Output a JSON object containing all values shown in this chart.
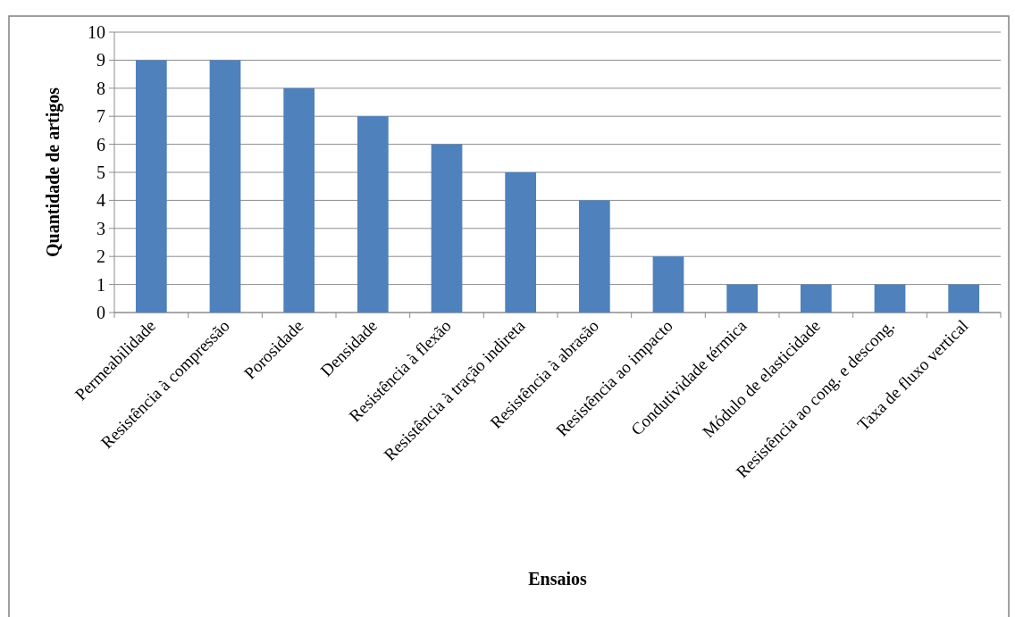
{
  "chart_data": {
    "type": "bar",
    "xlabel": "Ensaios",
    "ylabel": "Quantidade de artigos",
    "categories": [
      "Permeabilidade",
      "Resistência à compressão",
      "Porosidade",
      "Densidade",
      "Resistência à flexão",
      "Resistência à tração indireta",
      "Resistência à abrasão",
      "Resistência ao impacto",
      "Condutividade térmica",
      "Módulo de elasticidade",
      "Resistência ao cong. e descong.",
      "Taxa de fluxo vertical"
    ],
    "values": [
      9,
      9,
      8,
      7,
      6,
      5,
      4,
      2,
      1,
      1,
      1,
      1
    ],
    "color": "#4f81bd",
    "ylim": [
      0,
      10
    ],
    "yticks": [
      0,
      1,
      2,
      3,
      4,
      5,
      6,
      7,
      8,
      9,
      10
    ],
    "grid": "y"
  }
}
